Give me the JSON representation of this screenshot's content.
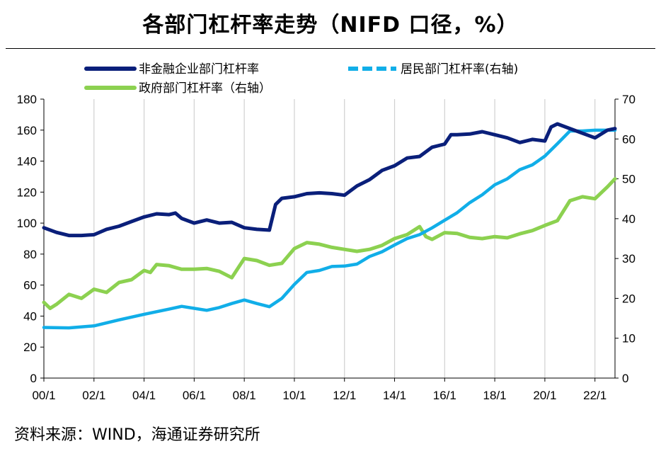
{
  "title": "各部门杠杆率走势（NIFD 口径，%）",
  "source": "资料来源：WIND，海通证券研究所",
  "colors": {
    "nonfinancial": "#0a1f7a",
    "household": "#11aee8",
    "government": "#8cd150",
    "grid": "#d0d0d0",
    "axis": "#000000"
  },
  "chart_data": {
    "type": "line",
    "x_tick_labels": [
      "00/1",
      "02/1",
      "04/1",
      "06/1",
      "08/1",
      "10/1",
      "12/1",
      "14/1",
      "16/1",
      "18/1",
      "20/1",
      "22/1"
    ],
    "x_range": [
      2000.0,
      2022.8
    ],
    "y_left_ticks": [
      "0",
      "20",
      "40",
      "60",
      "80",
      "100",
      "120",
      "140",
      "160",
      "180"
    ],
    "y_left_range": [
      0,
      180
    ],
    "y_right_ticks": [
      "0",
      "10",
      "20",
      "30",
      "40",
      "50",
      "60",
      "70"
    ],
    "y_right_range": [
      0,
      70
    ],
    "grid": "vertical at x ticks",
    "legend": [
      "非金融企业部门杠杆率",
      "居民部门杠杆率(右轴)",
      "政府部门杠杆率（右轴）"
    ],
    "series": [
      {
        "name": "非金融企业部门杠杆率",
        "axis": "left",
        "color_key": "nonfinancial",
        "style": "solid-thick",
        "x": [
          2000.0,
          2000.5,
          2001.0,
          2001.5,
          2002.0,
          2002.5,
          2003.0,
          2003.5,
          2004.0,
          2004.5,
          2005.0,
          2005.25,
          2005.5,
          2006.0,
          2006.5,
          2007.0,
          2007.5,
          2008.0,
          2008.5,
          2009.0,
          2009.25,
          2009.5,
          2010.0,
          2010.5,
          2011.0,
          2011.5,
          2012.0,
          2012.5,
          2013.0,
          2013.5,
          2014.0,
          2014.5,
          2015.0,
          2015.5,
          2016.0,
          2016.25,
          2016.5,
          2017.0,
          2017.5,
          2018.0,
          2018.5,
          2019.0,
          2019.5,
          2020.0,
          2020.25,
          2020.5,
          2021.0,
          2021.5,
          2022.0,
          2022.5,
          2022.8
        ],
        "values": [
          97,
          94,
          92,
          92,
          92.5,
          96,
          98,
          101,
          104,
          106,
          105.5,
          106.5,
          103,
          100,
          102,
          100,
          100.5,
          97,
          96,
          95.5,
          112,
          116,
          117,
          119,
          119.5,
          119,
          118,
          124,
          128,
          134,
          137,
          142,
          143,
          149,
          151,
          157,
          157,
          157.5,
          159,
          157,
          155,
          152,
          154,
          153,
          162,
          164,
          161,
          158,
          155,
          160,
          161
        ]
      },
      {
        "name": "居民部门杠杆率(右轴)",
        "axis": "right",
        "color_key": "household",
        "style": "solid",
        "x": [
          2000.0,
          2001.0,
          2002.0,
          2003.0,
          2004.0,
          2005.0,
          2005.5,
          2006.0,
          2006.5,
          2007.0,
          2007.5,
          2008.0,
          2008.5,
          2009.0,
          2009.5,
          2010.0,
          2010.5,
          2011.0,
          2011.5,
          2012.0,
          2012.5,
          2013.0,
          2013.5,
          2014.0,
          2014.5,
          2015.0,
          2015.5,
          2016.0,
          2016.5,
          2017.0,
          2017.5,
          2018.0,
          2018.5,
          2019.0,
          2019.5,
          2020.0,
          2020.5,
          2021.0,
          2021.5,
          2022.0,
          2022.8
        ],
        "values": [
          12.7,
          12.6,
          13.1,
          14.6,
          16.0,
          17.3,
          18.0,
          17.5,
          17.0,
          17.7,
          18.7,
          19.6,
          18.7,
          17.9,
          20.0,
          23.5,
          26.5,
          27.0,
          28.0,
          28.1,
          28.6,
          30.5,
          31.7,
          33.4,
          35.0,
          36.0,
          37.7,
          39.6,
          41.5,
          44.0,
          46.0,
          48.5,
          50.0,
          52.3,
          53.5,
          55.7,
          58.8,
          62.0,
          62.0,
          62.2,
          62.2
        ]
      },
      {
        "name": "政府部门杠杆率（右轴）",
        "axis": "right",
        "color_key": "government",
        "style": "solid-thick",
        "x": [
          2000.0,
          2000.25,
          2000.5,
          2001.0,
          2001.5,
          2002.0,
          2002.5,
          2003.0,
          2003.5,
          2004.0,
          2004.25,
          2004.5,
          2005.0,
          2005.5,
          2006.0,
          2006.5,
          2007.0,
          2007.5,
          2008.0,
          2008.5,
          2009.0,
          2009.5,
          2010.0,
          2010.5,
          2011.0,
          2011.5,
          2012.0,
          2012.5,
          2013.0,
          2013.5,
          2014.0,
          2014.5,
          2015.0,
          2015.25,
          2015.5,
          2016.0,
          2016.5,
          2017.0,
          2017.5,
          2018.0,
          2018.5,
          2019.0,
          2019.5,
          2020.0,
          2020.5,
          2021.0,
          2021.5,
          2022.0,
          2022.5,
          2022.8
        ],
        "values": [
          19,
          17.5,
          18.5,
          21,
          20,
          22.3,
          21.5,
          24,
          24.7,
          27,
          26.5,
          28.5,
          28.2,
          27.3,
          27.3,
          27.5,
          26.8,
          25.2,
          30.0,
          29.5,
          28.3,
          28.8,
          32.5,
          34.0,
          33.6,
          32.8,
          32.3,
          31.8,
          32.3,
          33.3,
          35.0,
          36.0,
          38.0,
          35.5,
          34.8,
          36.5,
          36.3,
          35.3,
          35.0,
          35.5,
          35.2,
          36.2,
          37.0,
          38.3,
          39.5,
          44.5,
          45.5,
          45.0,
          48.0,
          50.0
        ]
      }
    ]
  }
}
